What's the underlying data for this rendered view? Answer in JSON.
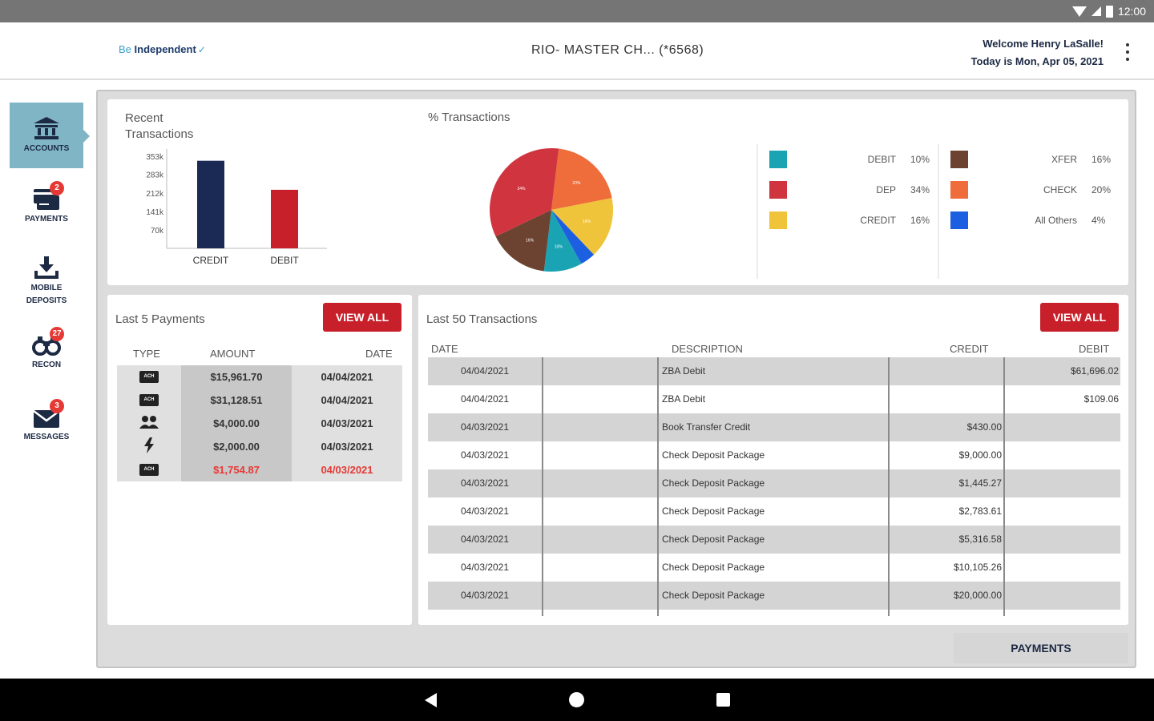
{
  "status_bar": {
    "time": "12:00"
  },
  "header": {
    "logo_be": "Be",
    "logo_independent": "Independent",
    "account_title": "RIO- MASTER CH...  (*6568)",
    "welcome": "Welcome Henry LaSalle!",
    "date_line": "Today is Mon, Apr 05, 2021"
  },
  "sidebar": {
    "items": [
      {
        "label": "ACCOUNTS",
        "icon": "bank-icon",
        "badge": ""
      },
      {
        "label": "PAYMENTS",
        "icon": "payments-icon",
        "badge": "2"
      },
      {
        "label": "MOBILE DEPOSITS",
        "icon": "download-icon",
        "badge": ""
      },
      {
        "label": "RECON",
        "icon": "binoculars-icon",
        "badge": "27"
      },
      {
        "label": "MESSAGES",
        "icon": "envelope-icon",
        "badge": "3"
      }
    ]
  },
  "recent_transactions": {
    "title_line1": "Recent",
    "title_line2": "Transactions"
  },
  "pct_transactions": {
    "title": "% Transactions",
    "legend": [
      {
        "name": "DEBIT",
        "pct": "10%",
        "color": "#1aa3b3"
      },
      {
        "name": "DEP",
        "pct": "34%",
        "color": "#d0343f"
      },
      {
        "name": "CREDIT",
        "pct": "16%",
        "color": "#f0c43a"
      },
      {
        "name": "XFER",
        "pct": "16%",
        "color": "#6b4330"
      },
      {
        "name": "CHECK",
        "pct": "20%",
        "color": "#ee6d3a"
      },
      {
        "name": "All Others",
        "pct": "4%",
        "color": "#1c5fe0"
      }
    ]
  },
  "chart_data": [
    {
      "type": "bar",
      "title": "Recent Transactions",
      "categories": [
        "CREDIT",
        "DEBIT"
      ],
      "values": [
        335,
        224
      ],
      "colors": [
        "#1b2a55",
        "#c8202a"
      ],
      "ytick_labels": [
        "353k",
        "283k",
        "212k",
        "141k",
        "70k"
      ],
      "yticks": [
        353,
        283,
        212,
        141,
        70
      ],
      "ylim": [
        0,
        380
      ]
    },
    {
      "type": "pie",
      "title": "% Transactions",
      "slices": [
        {
          "name": "CHECK",
          "value": 20,
          "color": "#ee6d3a"
        },
        {
          "name": "CREDIT",
          "value": 16,
          "color": "#f0c43a"
        },
        {
          "name": "All Others",
          "value": 4,
          "color": "#1c5fe0"
        },
        {
          "name": "DEBIT",
          "value": 10,
          "color": "#1aa3b3"
        },
        {
          "name": "XFER",
          "value": 16,
          "color": "#6b4330"
        },
        {
          "name": "DEP",
          "value": 34,
          "color": "#d0343f"
        }
      ]
    }
  ],
  "payments": {
    "title": "Last 5 Payments",
    "view_all": "VIEW ALL",
    "headers": {
      "type": "TYPE",
      "amount": "AMOUNT",
      "date": "DATE"
    },
    "rows": [
      {
        "type": "ach",
        "type_label": "ACH",
        "amount": "$15,961.70",
        "date": "04/04/2021",
        "highlight": false
      },
      {
        "type": "ach",
        "type_label": "ACH",
        "amount": "$31,128.51",
        "date": "04/04/2021",
        "highlight": false
      },
      {
        "type": "people",
        "type_label": "",
        "amount": "$4,000.00",
        "date": "04/03/2021",
        "highlight": false
      },
      {
        "type": "wire",
        "type_label": "",
        "amount": "$2,000.00",
        "date": "04/03/2021",
        "highlight": false
      },
      {
        "type": "ach",
        "type_label": "ACH",
        "amount": "$1,754.87",
        "date": "04/03/2021",
        "highlight": true
      }
    ]
  },
  "transactions": {
    "title": "Last 50 Transactions",
    "view_all": "VIEW ALL",
    "headers": {
      "date": "DATE",
      "description": "DESCRIPTION",
      "credit": "CREDIT",
      "debit": "DEBIT"
    },
    "rows": [
      {
        "date": "04/04/2021",
        "description": "ZBA Debit",
        "credit": "",
        "debit": "$61,696.02"
      },
      {
        "date": "04/04/2021",
        "description": "ZBA Debit",
        "credit": "",
        "debit": "$109.06"
      },
      {
        "date": "04/03/2021",
        "description": "Book Transfer Credit",
        "credit": "$430.00",
        "debit": ""
      },
      {
        "date": "04/03/2021",
        "description": "Check Deposit Package",
        "credit": "$9,000.00",
        "debit": ""
      },
      {
        "date": "04/03/2021",
        "description": "Check Deposit Package",
        "credit": "$1,445.27",
        "debit": ""
      },
      {
        "date": "04/03/2021",
        "description": "Check Deposit Package",
        "credit": "$2,783.61",
        "debit": ""
      },
      {
        "date": "04/03/2021",
        "description": "Check Deposit Package",
        "credit": "$5,316.58",
        "debit": ""
      },
      {
        "date": "04/03/2021",
        "description": "Check Deposit Package",
        "credit": "$10,105.26",
        "debit": ""
      },
      {
        "date": "04/03/2021",
        "description": "Check Deposit Package",
        "credit": "$20,000.00",
        "debit": ""
      }
    ]
  },
  "footer_tab": "PAYMENTS"
}
